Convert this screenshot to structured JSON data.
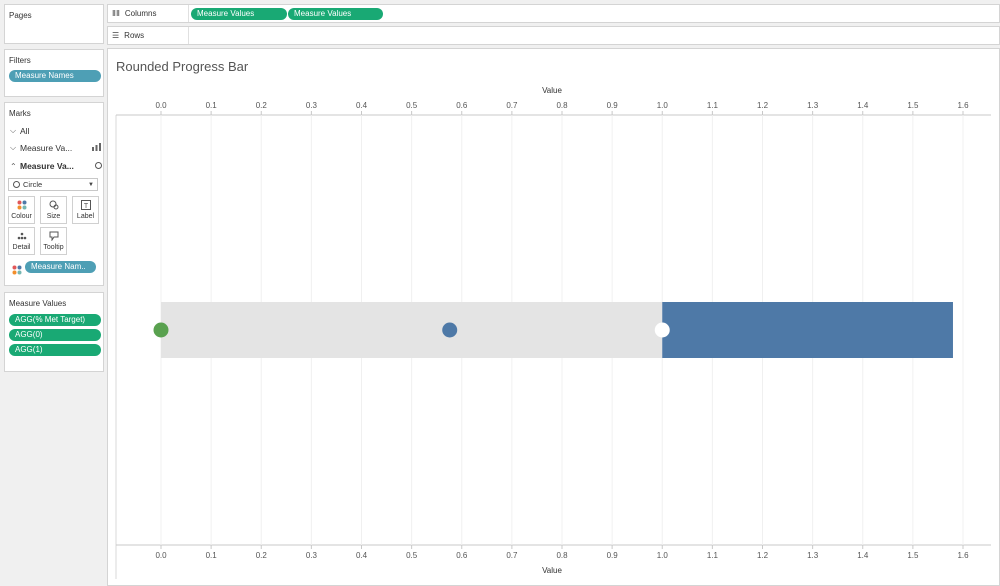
{
  "panes": {
    "pages_title": "Pages",
    "filters_title": "Filters",
    "filters_pill": "Measure Names",
    "marks_title": "Marks",
    "marks_all": "All",
    "marks_layer1": "Measure Va...",
    "marks_layer2": "Measure Va...",
    "mark_type": "Circle",
    "btn_colour": "Colour",
    "btn_size": "Size",
    "btn_label": "Label",
    "btn_detail": "Detail",
    "btn_tooltip": "Tooltip",
    "color_pill": "Measure Nam..",
    "measure_values_title": "Measure Values",
    "measure_values_pills": [
      "AGG(% Met Target)",
      "AGG(0)",
      "AGG(1)"
    ]
  },
  "shelves": {
    "columns_label": "Columns",
    "rows_label": "Rows",
    "column_pills": [
      "Measure Values",
      "Measure Values"
    ]
  },
  "view": {
    "title": "Rounded Progress Bar"
  },
  "chart_data": {
    "type": "bar",
    "title": "Rounded Progress Bar",
    "xlabel": "Value",
    "ylabel": "",
    "xlim": [
      0.0,
      1.6
    ],
    "x_ticks": [
      "0.0",
      "0.1",
      "0.2",
      "0.3",
      "0.4",
      "0.5",
      "0.6",
      "0.7",
      "0.8",
      "0.9",
      "1.0",
      "1.1",
      "1.2",
      "1.3",
      "1.4",
      "1.5",
      "1.6"
    ],
    "grid": true,
    "bars": [
      {
        "start": 0.0,
        "end": 1.0,
        "color": "#e4e4e4"
      },
      {
        "start": 1.0,
        "end": 1.58,
        "color": "#4e79a7"
      }
    ],
    "points": [
      {
        "x": 0.0,
        "color": "#59a14f"
      },
      {
        "x": 0.576,
        "color": "#4e79a7"
      },
      {
        "x": 1.0,
        "color": "#ffffff"
      }
    ]
  }
}
